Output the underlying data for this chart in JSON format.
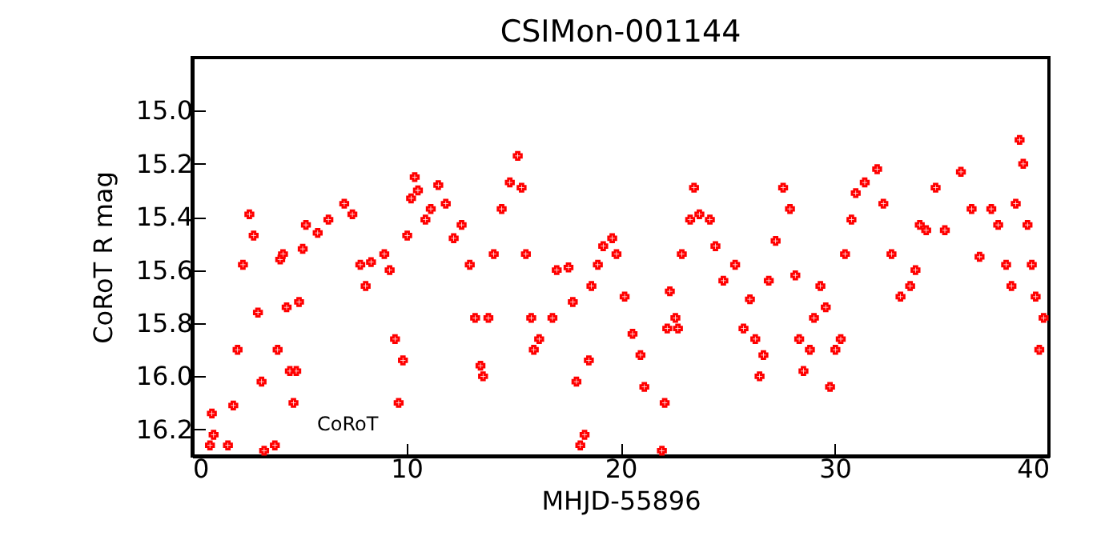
{
  "chart_data": {
    "type": "scatter",
    "title": "CSIMon-001144",
    "xlabel": "MHJD-55896",
    "ylabel": "CoRoT R mag",
    "marker": "cross",
    "grid": false,
    "annotations": [
      "CoRoT"
    ],
    "xlim": [
      0,
      40
    ],
    "xticks": [
      0,
      10,
      20,
      30,
      40
    ],
    "ylim": [
      16.3,
      14.8
    ],
    "yticks": [
      {
        "value": 15,
        "label": "15.0"
      },
      {
        "value": 15.2,
        "label": "15.2"
      },
      {
        "value": 15.4,
        "label": "15.4"
      },
      {
        "value": 15.6,
        "label": "15.6"
      },
      {
        "value": 15.8,
        "label": "15.8"
      },
      {
        "value": 16,
        "label": "16.0"
      },
      {
        "value": 16.2,
        "label": "16.2"
      }
    ],
    "series": [
      {
        "color": "#ff0000",
        "x": [
          0.83,
          0.92,
          1.0,
          1.67,
          1.92,
          2.12,
          2.37,
          2.67,
          2.87,
          3.07,
          3.24,
          3.36,
          3.86,
          3.99,
          4.11,
          4.24,
          4.41,
          4.56,
          4.73,
          4.86,
          4.99,
          5.16,
          5.31,
          5.86,
          6.36,
          7.1,
          7.48,
          7.85,
          8.1,
          8.35,
          8.97,
          9.22,
          9.47,
          9.64,
          9.84,
          10.04,
          10.22,
          10.39,
          10.54,
          10.89,
          11.14,
          11.49,
          11.84,
          12.21,
          12.58,
          12.96,
          13.21,
          13.46,
          13.58,
          13.83,
          14.08,
          14.45,
          14.83,
          15.2,
          15.38,
          15.58,
          15.83,
          15.95,
          16.2,
          16.82,
          17.02,
          17.57,
          17.77,
          17.94,
          18.12,
          18.32,
          18.52,
          18.64,
          18.94,
          19.19,
          19.61,
          19.81,
          20.19,
          20.56,
          20.93,
          21.11,
          21.93,
          22.06,
          22.18,
          22.3,
          22.56,
          22.68,
          22.86,
          23.25,
          23.43,
          23.68,
          24.17,
          24.43,
          24.8,
          25.35,
          25.74,
          26.04,
          26.29,
          26.49,
          26.67,
          26.92,
          27.24,
          27.59,
          27.91,
          28.16,
          28.34,
          28.54,
          28.84,
          29.03,
          29.33,
          29.58,
          29.78,
          30.03,
          30.28,
          30.48,
          30.78,
          30.98,
          31.4,
          31.98,
          32.27,
          32.65,
          33.07,
          33.52,
          33.77,
          33.97,
          34.27,
          34.71,
          35.14,
          35.89,
          36.39,
          36.76,
          37.31,
          37.63,
          38.0,
          38.25,
          38.45,
          38.63,
          38.8,
          39.0,
          39.2,
          39.38,
          39.55,
          39.75
        ],
        "values": [
          16.26,
          16.14,
          16.22,
          16.26,
          16.11,
          15.9,
          15.58,
          15.39,
          15.47,
          15.76,
          16.02,
          16.28,
          16.26,
          15.9,
          15.56,
          15.54,
          15.74,
          15.98,
          16.1,
          15.98,
          15.72,
          15.52,
          15.43,
          15.46,
          15.41,
          15.35,
          15.39,
          15.58,
          15.66,
          15.57,
          15.54,
          15.6,
          15.86,
          16.1,
          15.94,
          15.47,
          15.33,
          15.25,
          15.3,
          15.41,
          15.37,
          15.28,
          15.35,
          15.48,
          15.43,
          15.58,
          15.78,
          15.96,
          16.0,
          15.78,
          15.54,
          15.37,
          15.27,
          15.17,
          15.29,
          15.54,
          15.78,
          15.9,
          15.86,
          15.78,
          15.6,
          15.59,
          15.72,
          16.02,
          16.26,
          16.22,
          15.94,
          15.66,
          15.58,
          15.51,
          15.48,
          15.54,
          15.7,
          15.84,
          15.92,
          16.04,
          16.28,
          16.1,
          15.82,
          15.68,
          15.78,
          15.82,
          15.54,
          15.41,
          15.29,
          15.39,
          15.41,
          15.51,
          15.64,
          15.58,
          15.82,
          15.71,
          15.86,
          16.0,
          15.92,
          15.64,
          15.49,
          15.29,
          15.37,
          15.62,
          15.86,
          15.98,
          15.9,
          15.78,
          15.66,
          15.74,
          16.04,
          15.9,
          15.86,
          15.54,
          15.41,
          15.31,
          15.27,
          15.22,
          15.35,
          15.54,
          15.7,
          15.66,
          15.6,
          15.43,
          15.45,
          15.29,
          15.45,
          15.23,
          15.37,
          15.55,
          15.37,
          15.43,
          15.58,
          15.66,
          15.35,
          15.11,
          15.2,
          15.43,
          15.58,
          15.7,
          15.9,
          15.78
        ]
      }
    ]
  }
}
